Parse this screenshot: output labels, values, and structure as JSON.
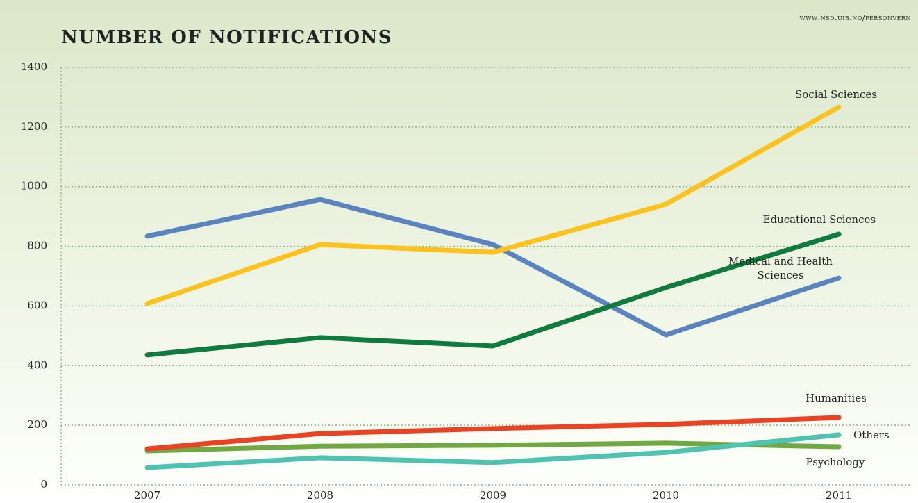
{
  "chart_data": {
    "type": "line",
    "title": "NUMBER OF NOTIFICATIONS",
    "source": "www.nsd.uib.no/personvern",
    "categories": [
      "2007",
      "2008",
      "2009",
      "2010",
      "2011"
    ],
    "series": [
      {
        "name": "Medical and Health Sciences",
        "color": "#5b84bf",
        "values": [
          834,
          957,
          806,
          503,
          694
        ]
      },
      {
        "name": "Social Sciences",
        "color": "#fcc31f",
        "values": [
          608,
          806,
          780,
          941,
          1267
        ]
      },
      {
        "name": "Educational Sciences",
        "color": "#117a3e",
        "values": [
          436,
          494,
          466,
          662,
          841
        ]
      },
      {
        "name": "Psychology",
        "color": "#72a844",
        "values": [
          114,
          130,
          133,
          140,
          128
        ]
      },
      {
        "name": "Others",
        "color": "#4fc2b2",
        "values": [
          58,
          91,
          75,
          109,
          168
        ]
      },
      {
        "name": "Humanities",
        "color": "#e84324",
        "values": [
          121,
          172,
          189,
          203,
          226
        ]
      }
    ],
    "ylim": [
      0,
      1400
    ],
    "yticks": [
      0,
      200,
      400,
      600,
      800,
      1000,
      1200,
      1400
    ],
    "grid": true
  }
}
